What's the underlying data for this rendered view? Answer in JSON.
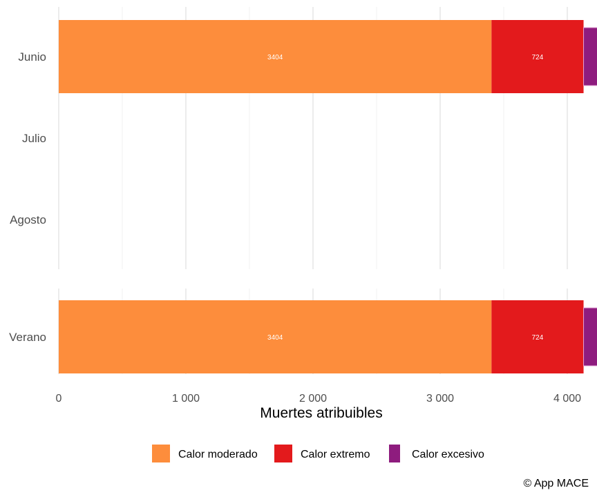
{
  "chart_data": {
    "type": "bar",
    "orientation": "horizontal",
    "stacked": true,
    "panels": [
      {
        "categories": [
          "Junio",
          "Julio",
          "Agosto"
        ]
      },
      {
        "categories": [
          "Verano"
        ]
      }
    ],
    "series": [
      {
        "name": "Calor moderado",
        "color": "#FD8D3C",
        "values": {
          "Junio": 3404,
          "Julio": null,
          "Agosto": null,
          "Verano": 3404
        },
        "labels": {
          "Junio": "3404",
          "Verano": "3404"
        }
      },
      {
        "name": "Calor extremo",
        "color": "#E31A1C",
        "values": {
          "Junio": 724,
          "Julio": null,
          "Agosto": null,
          "Verano": 724
        },
        "labels": {
          "Junio": "724",
          "Verano": "724"
        }
      },
      {
        "name": "Calor excesivo",
        "color": "#8E1C7E",
        "values": {
          "Junio": 110,
          "Julio": null,
          "Agosto": null,
          "Verano": 110
        },
        "labels": {}
      }
    ],
    "xlim": [
      0,
      4130
    ],
    "xticks": [
      0,
      1000,
      2000,
      3000,
      4000
    ],
    "xtick_labels": [
      "0",
      "1 000",
      "2 000",
      "3 000",
      "4 000"
    ],
    "xlabel": "Muertes atribuibles",
    "ylabel": "",
    "grid": true,
    "legend_position": "bottom"
  },
  "caption": "© App MACE"
}
